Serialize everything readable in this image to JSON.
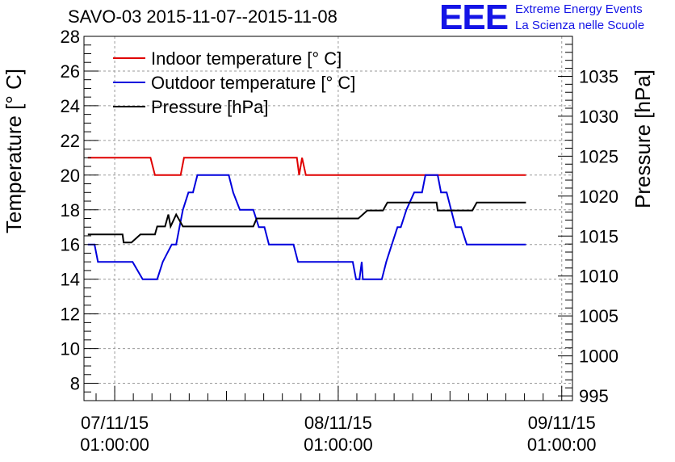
{
  "header": {
    "title": "SAVO-03 2015-11-07--2015-11-08",
    "logo_text": "EEE",
    "logo_line1": "Extreme Energy Events",
    "logo_line2": "La Scienza nelle Scuole"
  },
  "colors": {
    "indoor": "#e00000",
    "outdoor": "#0000dd",
    "pressure": "#000000",
    "logo": "#1414e6",
    "grid": "#9a9a9a"
  },
  "chart_data": {
    "type": "line",
    "ylabel": "Temperature [° C]",
    "y2label": "Pressure [hPa]",
    "ylim": [
      7,
      28
    ],
    "y2lim": [
      994.4,
      1040.0
    ],
    "xlim": [
      -0.1375,
      2.0479
    ],
    "x_ticks": [
      {
        "x": 0,
        "line1": "07/11/15",
        "line2": "01:00:00"
      },
      {
        "x": 1,
        "line1": "08/11/15",
        "line2": "01:00:00"
      },
      {
        "x": 2,
        "line1": "09/11/15",
        "line2": "01:00:00"
      }
    ],
    "y_ticks": [
      8,
      10,
      12,
      14,
      16,
      18,
      20,
      22,
      24,
      26,
      28
    ],
    "y2_ticks": [
      995,
      1000,
      1005,
      1010,
      1015,
      1020,
      1025,
      1030,
      1035
    ],
    "grid": true,
    "legend_position": "top-left",
    "series": [
      {
        "name": "Indoor temperature [° C]",
        "axis": "left",
        "color_key": "indoor",
        "points": [
          [
            -0.12,
            21
          ],
          [
            0.16,
            21
          ],
          [
            0.18,
            20
          ],
          [
            0.295,
            20
          ],
          [
            0.31,
            21
          ],
          [
            0.815,
            21
          ],
          [
            0.825,
            20
          ],
          [
            0.838,
            21
          ],
          [
            0.855,
            20
          ],
          [
            1.84,
            20
          ]
        ]
      },
      {
        "name": "Outdoor temperature [° C]",
        "axis": "left",
        "color_key": "outdoor",
        "points": [
          [
            -0.12,
            16
          ],
          [
            -0.09,
            16
          ],
          [
            -0.075,
            15
          ],
          [
            0.08,
            15
          ],
          [
            0.125,
            14
          ],
          [
            0.19,
            14
          ],
          [
            0.215,
            15
          ],
          [
            0.255,
            16
          ],
          [
            0.275,
            16
          ],
          [
            0.29,
            17
          ],
          [
            0.305,
            18
          ],
          [
            0.33,
            19
          ],
          [
            0.35,
            19
          ],
          [
            0.37,
            20
          ],
          [
            0.51,
            20
          ],
          [
            0.53,
            19
          ],
          [
            0.56,
            18
          ],
          [
            0.62,
            18
          ],
          [
            0.645,
            17
          ],
          [
            0.67,
            17
          ],
          [
            0.69,
            16
          ],
          [
            0.8,
            16
          ],
          [
            0.82,
            15
          ],
          [
            1.065,
            15
          ],
          [
            1.08,
            14
          ],
          [
            1.095,
            14
          ],
          [
            1.105,
            15
          ],
          [
            1.11,
            14
          ],
          [
            1.195,
            14
          ],
          [
            1.215,
            15
          ],
          [
            1.24,
            16
          ],
          [
            1.265,
            17
          ],
          [
            1.28,
            17
          ],
          [
            1.305,
            18
          ],
          [
            1.34,
            19
          ],
          [
            1.375,
            19
          ],
          [
            1.39,
            20
          ],
          [
            1.445,
            20
          ],
          [
            1.46,
            19
          ],
          [
            1.485,
            19
          ],
          [
            1.505,
            18
          ],
          [
            1.525,
            17
          ],
          [
            1.55,
            17
          ],
          [
            1.575,
            16
          ],
          [
            1.575,
            16
          ],
          [
            1.575,
            16
          ],
          [
            1.58,
            16
          ],
          [
            1.59,
            16
          ],
          [
            1.6,
            16
          ],
          [
            1.61,
            16
          ],
          [
            1.615,
            16
          ],
          [
            1.625,
            16
          ],
          [
            1.63,
            16
          ],
          [
            1.645,
            16
          ],
          [
            1.65,
            16
          ],
          [
            1.655,
            16
          ],
          [
            1.66,
            16
          ],
          [
            1.66,
            16
          ],
          [
            1.67,
            16
          ],
          [
            1.68,
            16
          ],
          [
            1.69,
            16
          ],
          [
            1.7,
            16
          ],
          [
            1.71,
            16
          ],
          [
            1.72,
            16
          ],
          [
            1.73,
            16
          ],
          [
            1.74,
            16
          ],
          [
            1.75,
            16
          ],
          [
            1.76,
            16
          ],
          [
            1.77,
            16
          ],
          [
            1.78,
            16
          ],
          [
            1.79,
            16
          ],
          [
            1.8,
            16
          ],
          [
            1.81,
            16
          ],
          [
            1.82,
            16
          ],
          [
            1.84,
            16
          ]
        ]
      },
      {
        "name": "Pressure [hPa]",
        "axis": "right",
        "color_key": "pressure",
        "points": [
          [
            -0.12,
            1015.2
          ],
          [
            0.035,
            1015.2
          ],
          [
            0.04,
            1014.2
          ],
          [
            0.075,
            1014.2
          ],
          [
            0.115,
            1015.2
          ],
          [
            0.18,
            1015.2
          ],
          [
            0.19,
            1016.2
          ],
          [
            0.225,
            1016.2
          ],
          [
            0.24,
            1017.7
          ],
          [
            0.25,
            1016.2
          ],
          [
            0.275,
            1017.7
          ],
          [
            0.285,
            1017.2
          ],
          [
            0.305,
            1016.2
          ],
          [
            0.33,
            1016.2
          ],
          [
            0.335,
            1016.2
          ],
          [
            0.62,
            1016.2
          ],
          [
            0.635,
            1017.2
          ],
          [
            1.09,
            1017.2
          ],
          [
            1.13,
            1018.2
          ],
          [
            1.2,
            1018.2
          ],
          [
            1.22,
            1019.2
          ],
          [
            1.4,
            1019.2
          ],
          [
            1.44,
            1019.2
          ],
          [
            1.445,
            1018.2
          ],
          [
            1.55,
            1018.2
          ],
          [
            1.58,
            1018.2
          ],
          [
            1.6,
            1018.2
          ],
          [
            1.62,
            1019.2
          ],
          [
            1.84,
            1019.2
          ]
        ]
      }
    ]
  }
}
